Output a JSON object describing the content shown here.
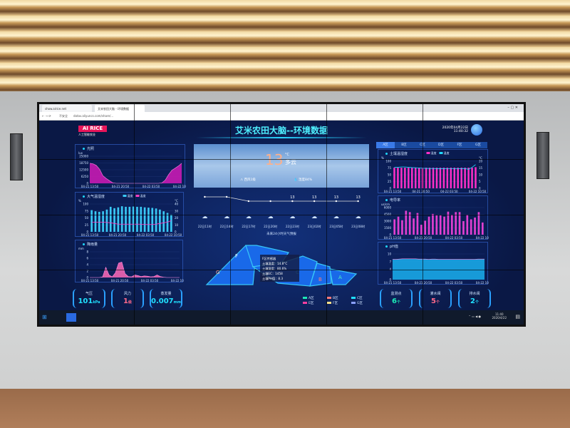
{
  "browser": {
    "tabs": [
      "show.airice.net",
      "艾米农田大脑 - 环境数据"
    ],
    "security_label": "不安全",
    "url": "datav.aliyuncs.com/share/..."
  },
  "header": {
    "logo_text": "AI RICE",
    "logo_sub": "人工智能农业",
    "title": "艾米农田大脑--环境数据",
    "date": "2020年04月22日",
    "time": "11:40:32"
  },
  "colors": {
    "accent": "#20d8ff",
    "magenta": "#ff2fc8",
    "bg": "#0a1845"
  },
  "left": {
    "light": {
      "title": "光照",
      "unit": "lux",
      "yticks": [
        0,
        6250,
        12500,
        18750,
        25000
      ],
      "xlabels": [
        "04-21 13:50",
        "04-21 20:50",
        "04-22 03:50",
        "04-22 10:50"
      ],
      "values": [
        18500,
        18000,
        16500,
        13000,
        7000,
        4500,
        2500,
        500,
        0,
        0,
        0,
        0,
        0,
        0,
        0,
        0,
        0,
        0,
        0,
        0,
        0,
        0,
        500,
        3000,
        8000,
        12000,
        14000,
        16000,
        18500
      ]
    },
    "air": {
      "title": "大气温湿度",
      "legend": [
        "湿度",
        "温度"
      ],
      "unit_left": "%",
      "unit_right": "°C",
      "yticks_left": [
        0,
        25,
        50,
        75,
        100
      ],
      "yticks_right": [
        0,
        10,
        20,
        30,
        40
      ],
      "xlabels": [
        "04-21 13:50",
        "04-21 20:50",
        "04-22 03:50",
        "04-22 10:50"
      ],
      "humidity": [
        78,
        74,
        72,
        74,
        80,
        90,
        85,
        88,
        92,
        90,
        90,
        91,
        90,
        90,
        88,
        87,
        86,
        84,
        80,
        74,
        68,
        62
      ],
      "temperature": [
        14,
        14,
        14,
        14,
        13.5,
        13,
        12,
        11,
        11,
        11,
        11,
        11,
        11,
        11,
        10.5,
        10.5,
        10.5,
        11,
        12,
        13,
        14,
        16
      ]
    },
    "rain": {
      "title": "降雨量",
      "unit": "mm",
      "yticks": [
        0,
        2,
        4,
        6,
        8
      ],
      "xlabels": [
        "04-21 13:50",
        "04-21 20:50",
        "04-22 03:50",
        "04-22 10:50"
      ],
      "values": [
        0,
        0,
        0,
        0,
        0.2,
        3.2,
        0.8,
        0.2,
        1.5,
        4.5,
        4.8,
        1.2,
        0.3,
        0.2,
        0.8,
        0.6,
        0.3,
        0.5,
        0.4,
        0.2,
        0.3,
        0.8,
        0.3,
        0.1,
        0,
        0,
        0,
        0,
        0
      ]
    },
    "cards": [
      {
        "label": "气压",
        "value": "101",
        "unit": "kPa",
        "color": "#20e0ff"
      },
      {
        "label": "风力",
        "value": "1",
        "unit": "级",
        "color": "#ff6a8a"
      },
      {
        "label": "蒸发量",
        "value": "0.007",
        "unit": "mm",
        "color": "#20e0ff"
      }
    ]
  },
  "weather": {
    "temp": "13",
    "unit": "°C",
    "condition": "多云",
    "wind": "西风1级",
    "humidity": "湿度84%",
    "forecast": {
      "temps": [
        14,
        14,
        13,
        13,
        13,
        13,
        13,
        13
      ],
      "labels": [
        "",
        "",
        "",
        "",
        "13",
        "13",
        "13",
        "13"
      ],
      "times": [
        "22日11时",
        "22日14时",
        "22日17时",
        "22日20时",
        "22日23时",
        "23日02时",
        "23日05时",
        "23日08时"
      ],
      "caption": "未来24小时天气预报"
    }
  },
  "map": {
    "zones": [
      "A",
      "B",
      "C",
      "F",
      "G"
    ],
    "tooltip": [
      "F区传感器",
      "土壤温度：14.8°C",
      "土壤湿度：80.6%",
      "土壤EC：1458",
      "土壤PH值：8.3"
    ],
    "legend": [
      {
        "label": "A区",
        "color": "#1de9b6"
      },
      {
        "label": "B区",
        "color": "#ff7a7a"
      },
      {
        "label": "C区",
        "color": "#20e0ff"
      },
      {
        "label": "E区",
        "color": "#ff3fa0"
      },
      {
        "label": "F区",
        "color": "#ffe08a"
      },
      {
        "label": "G区",
        "color": "#8aa0ff"
      }
    ]
  },
  "right": {
    "tabs": [
      "A区",
      "B区",
      "C区",
      "D区",
      "F区",
      "G区"
    ],
    "active_tab": 0,
    "soil": {
      "title": "土壤温湿度",
      "legend": [
        "湿度",
        "温度"
      ],
      "unit_left": "%",
      "unit_right": "°C",
      "yticks_left": [
        0,
        25,
        50,
        75,
        100
      ],
      "yticks_right": [
        0,
        5,
        10,
        15,
        20
      ],
      "xlabels": [
        "04-21 13:50",
        "04-21 20:50",
        "04-22 03:50",
        "04-22 10:50"
      ],
      "humidity": [
        76,
        76,
        76,
        76,
        76,
        76,
        76,
        76,
        76,
        76,
        76,
        76,
        76,
        76,
        76,
        76,
        76,
        76,
        76,
        76,
        76,
        76,
        76,
        78
      ],
      "temperature": [
        15.5,
        15.5,
        15.8,
        15.8,
        15.5,
        15.3,
        15.2,
        15,
        14.8,
        14.7,
        14.6,
        14.6,
        14.5,
        14.5,
        14.5,
        14.4,
        14.4,
        14.4,
        14.4,
        14.5,
        14.6,
        14,
        15.5,
        17.5
      ]
    },
    "ec": {
      "title": "电导率",
      "unit": "us/cm",
      "yticks": [
        0,
        1500,
        3000,
        4500,
        6000
      ],
      "xlabels": [
        "04-21 13:50",
        "04-21 20:50",
        "04-22 03:50",
        "04-22 10:50"
      ],
      "values": [
        3400,
        4000,
        3200,
        5300,
        5000,
        3600,
        4800,
        2200,
        3100,
        4000,
        4600,
        4300,
        4300,
        4000,
        5100,
        4400,
        5000,
        5000,
        3000,
        4400,
        3400,
        3800,
        5000,
        2700
      ]
    },
    "ph": {
      "title": "pH值",
      "yticks": [
        0,
        4,
        7,
        10
      ],
      "xlabels": [
        "04-21 13:50",
        "04-21 20:50",
        "04-22 03:50",
        "04-22 10:50"
      ],
      "values": [
        7.9,
        7.9,
        8,
        8.1,
        8.1,
        8.1,
        8.1,
        8.1,
        8,
        8,
        8,
        7.9,
        8,
        8,
        7.9,
        7.9,
        7.9,
        7.9,
        7.9,
        7.9,
        7.9,
        7.9,
        7.9,
        7.9,
        7.9,
        7.9,
        8,
        8,
        8
      ]
    },
    "cards": [
      {
        "label": "监测点",
        "value": "6",
        "unit": "个",
        "color": "#1de9b6"
      },
      {
        "label": "灌水阀",
        "value": "5",
        "unit": "个",
        "color": "#ff6a8a"
      },
      {
        "label": "排水阀",
        "value": "2",
        "unit": "个",
        "color": "#20e0ff"
      }
    ]
  },
  "taskbar": {
    "time": "11:40",
    "date": "2020/4/22"
  }
}
